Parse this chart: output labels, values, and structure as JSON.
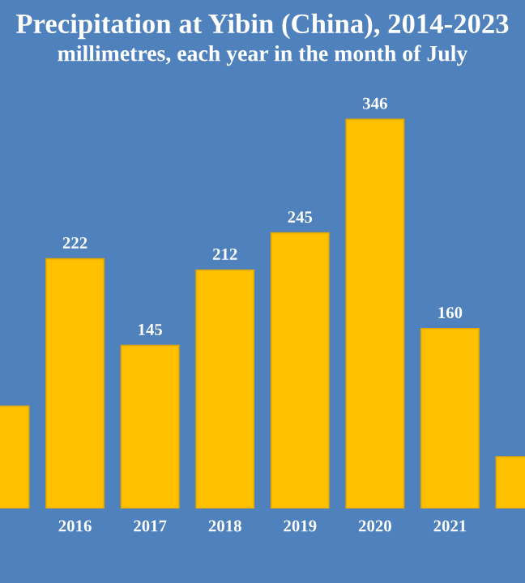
{
  "chart_data": {
    "type": "bar",
    "title": "Precipitation at Yibin (China), 2014-2023",
    "subtitle": "millimetres, each year in the month of July",
    "categories": [
      null,
      "2016",
      "2017",
      "2018",
      "2019",
      "2020",
      "2021",
      null
    ],
    "values": [
      91,
      222,
      145,
      212,
      245,
      346,
      160,
      46
    ],
    "value_labels": [
      null,
      "222",
      "145",
      "212",
      "245",
      "346",
      "160",
      null
    ],
    "color": "#ffc000",
    "grid": false,
    "legend": false
  }
}
